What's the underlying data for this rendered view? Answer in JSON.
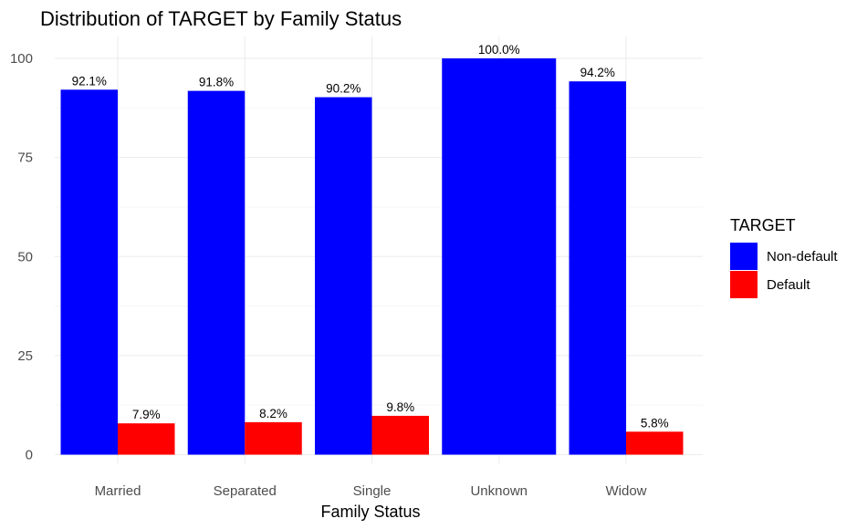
{
  "chart_data": {
    "type": "bar",
    "title": "Distribution of TARGET by Family Status",
    "xlabel": "Family Status",
    "ylabel": "",
    "categories": [
      "Married",
      "Separated",
      "Single",
      "Unknown",
      "Widow"
    ],
    "series": [
      {
        "name": "Non-default",
        "color": "#0000ff",
        "values": [
          92.1,
          91.8,
          90.2,
          100.0,
          94.2
        ],
        "labels": [
          "92.1%",
          "91.8%",
          "90.2%",
          "100.0%",
          "94.2%"
        ]
      },
      {
        "name": "Default",
        "color": "#ff0000",
        "values": [
          7.9,
          8.2,
          9.8,
          null,
          5.8
        ],
        "labels": [
          "7.9%",
          "8.2%",
          "9.8%",
          "",
          "5.8%"
        ]
      }
    ],
    "ylim": [
      0,
      105
    ],
    "yticks": [
      0,
      25,
      50,
      75,
      100
    ],
    "grid": true,
    "legend": {
      "title": "TARGET",
      "position": "right"
    }
  }
}
